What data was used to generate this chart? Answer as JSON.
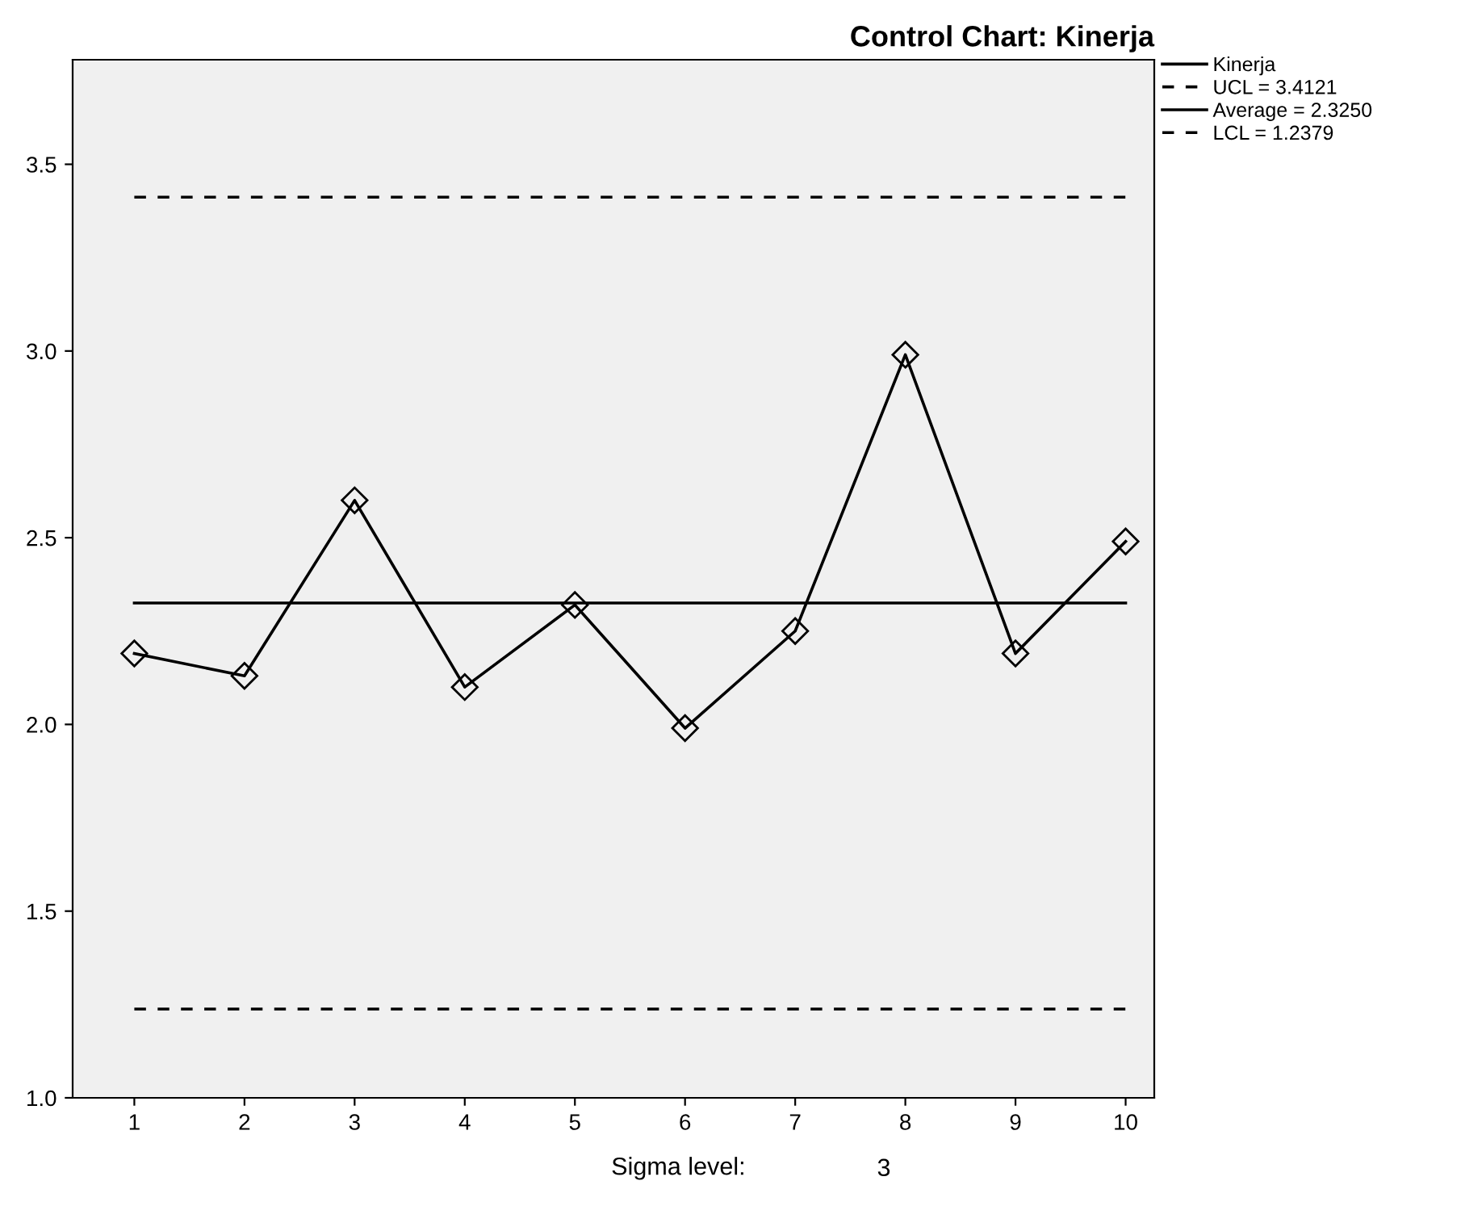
{
  "chart_data": {
    "type": "line",
    "title": "Control Chart: Kinerja",
    "xlabel": "Sigma level:",
    "annotations": [
      "3"
    ],
    "categories": [
      "1",
      "2",
      "3",
      "4",
      "5",
      "6",
      "7",
      "8",
      "9",
      "10"
    ],
    "series": [
      {
        "name": "Kinerja",
        "color": "#000000",
        "values": [
          2.19,
          2.13,
          2.6,
          2.1,
          2.32,
          1.99,
          2.25,
          2.99,
          2.19,
          2.49
        ]
      }
    ],
    "ref_lines": [
      {
        "axis": "y",
        "value": 3.4121,
        "label": "UCL = 3.4121",
        "color": "#000000",
        "line_style": "dashed"
      },
      {
        "axis": "y",
        "value": 2.325,
        "label": "Average = 2.3250",
        "color": "#000000",
        "line_style": "solid"
      },
      {
        "axis": "y",
        "value": 1.2379,
        "label": "LCL = 1.2379",
        "color": "#000000",
        "line_style": "dashed"
      }
    ],
    "ylim": [
      1.0,
      3.78
    ],
    "yticks": [
      {
        "value": 1.0,
        "label": "1.0"
      },
      {
        "value": 1.5,
        "label": "1.5"
      },
      {
        "value": 2.0,
        "label": "2.0"
      },
      {
        "value": 2.5,
        "label": "2.5"
      },
      {
        "value": 3.0,
        "label": "3.0"
      },
      {
        "value": 3.5,
        "label": "3.5"
      }
    ],
    "marker": "diamond",
    "line_style": "solid",
    "grid": false,
    "legend": "top right"
  }
}
